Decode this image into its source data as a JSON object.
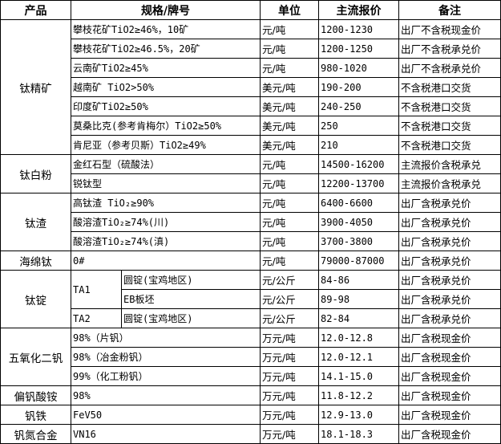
{
  "headers": [
    "产品",
    "规格/牌号",
    "单位",
    "主流报价",
    "备注"
  ],
  "groups": [
    {
      "product": "钛精矿",
      "items": [
        {
          "spec": "攀枝花矿TiO2≥46%，10矿",
          "unit": "元/吨",
          "price": "1200-1230",
          "note": "出厂不含税现金价"
        },
        {
          "spec": "攀枝花矿TiO2≥46.5%，20矿",
          "unit": "元/吨",
          "price": "1200-1250",
          "note": "出厂不含税承兑价"
        },
        {
          "spec": "云南矿TiO2≥45%",
          "unit": "元/吨",
          "price": "980-1020",
          "note": "出厂不含税承兑价"
        },
        {
          "spec": "越南矿 TiO2>50%",
          "unit": "美元/吨",
          "price": "190-200",
          "note": "不含税港口交货"
        },
        {
          "spec": "印度矿TiO2≥50%",
          "unit": "美元/吨",
          "price": "240-250",
          "note": "不含税港口交货"
        },
        {
          "spec": "莫桑比克(参考肯梅尔）TiO2≥50%",
          "unit": "美元/吨",
          "price": "250",
          "note": "不含税港口交货"
        },
        {
          "spec": "肯尼亚（参考贝斯）TiO2≥49%",
          "unit": "美元/吨",
          "price": "210",
          "note": "不含税港口交货"
        }
      ]
    },
    {
      "product": "钛白粉",
      "items": [
        {
          "spec": "金红石型（硫酸法）",
          "unit": "元/吨",
          "price": "14500-16200",
          "note": "主流报价含税承兑"
        },
        {
          "spec": "锐钛型",
          "unit": "元/吨",
          "price": "12200-13700",
          "note": "主流报价含税承兑"
        }
      ]
    },
    {
      "product": "钛渣",
      "items": [
        {
          "spec": "高钛渣 TiO₂≥90%",
          "unit": "元/吨",
          "price": "6400-6600",
          "note": "出厂含税承兑价"
        },
        {
          "spec": "酸溶渣TiO₂≥74%(川)",
          "unit": "元/吨",
          "price": "3900-4050",
          "note": "出厂含税承兑价"
        },
        {
          "spec": "酸溶渣TiO₂≥74%(滇)",
          "unit": "元/吨",
          "price": "3700-3800",
          "note": "出厂含税承兑价"
        }
      ]
    },
    {
      "product": "海绵钛",
      "items": [
        {
          "spec": "0#",
          "unit": "元/吨",
          "price": "79000-87000",
          "note": "出厂含税承兑价"
        }
      ]
    },
    {
      "product": "钛锭",
      "items": [
        {
          "grade": "TA1",
          "grade_span": 2,
          "spec": "圆锭(宝鸡地区)",
          "unit": "元/公斤",
          "price": "84-86",
          "note": "出厂含税承兑价"
        },
        {
          "spec": "EB板坯",
          "unit": "元/公斤",
          "price": "89-98",
          "note": "出厂含税承兑价"
        },
        {
          "grade": "TA2",
          "grade_span": 1,
          "spec": "圆锭(宝鸡地区)",
          "unit": "元/公斤",
          "price": "82-84",
          "note": "出厂含税承兑价"
        }
      ]
    },
    {
      "product": "五氧化二钒",
      "items": [
        {
          "spec": "98%（片钒）",
          "unit": "万元/吨",
          "price": "12.0-12.8",
          "note": "出厂含税现金价"
        },
        {
          "spec": "98%（冶金粉钒）",
          "unit": "万元/吨",
          "price": "12.0-12.1",
          "note": "出厂含税现金价"
        },
        {
          "spec": "99%（化工粉钒）",
          "unit": "万元/吨",
          "price": "14.1-15.0",
          "note": "出厂含税现金价"
        }
      ]
    },
    {
      "product": "偏钒酸铵",
      "items": [
        {
          "spec": "98%",
          "unit": "万元/吨",
          "price": "11.8-12.2",
          "note": "出厂含税现金价"
        }
      ]
    },
    {
      "product": "钒铁",
      "items": [
        {
          "spec": "FeV50",
          "unit": "万元/吨",
          "price": "12.9-13.0",
          "note": "出厂含税现金价"
        }
      ]
    },
    {
      "product": "钒氮合金",
      "items": [
        {
          "spec": "VN16",
          "unit": "万元/吨",
          "price": "18.1-18.3",
          "note": "出厂含税现金价"
        }
      ]
    }
  ]
}
